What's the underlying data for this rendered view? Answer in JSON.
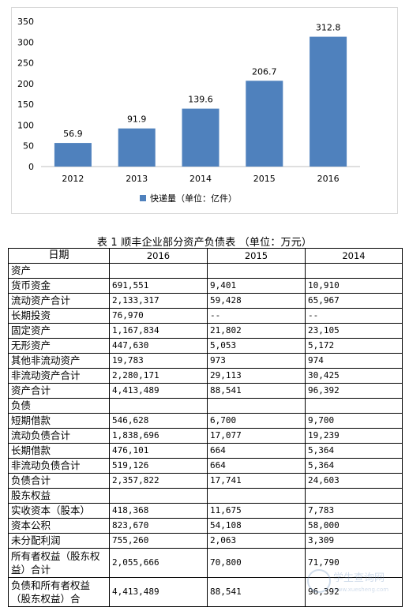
{
  "chart_data": {
    "type": "bar",
    "categories": [
      "2012",
      "2013",
      "2014",
      "2015",
      "2016"
    ],
    "values": [
      56.9,
      91.9,
      139.6,
      206.7,
      312.8
    ],
    "value_labels": [
      "56.9",
      "91.9",
      "139.6",
      "206.7",
      "312.8"
    ],
    "yticks": [
      "0",
      "50",
      "100",
      "150",
      "200",
      "250",
      "300",
      "350"
    ],
    "ylim": [
      0,
      350
    ],
    "legend": "快递量（单位：亿件）",
    "legend_position": "bottom",
    "bar_color": "#4F81BD",
    "grid": false
  },
  "table": {
    "caption": "表 1  顺丰企业部分资产负债表  （单位：万元）",
    "headers": [
      "日期",
      "2016",
      "2015",
      "2014"
    ],
    "rows": [
      {
        "label": "资产",
        "v2016": "",
        "v2015": "",
        "v2014": ""
      },
      {
        "label": "货币资金",
        "v2016": "691,551",
        "v2015": "9,401",
        "v2014": "10,910"
      },
      {
        "label": "流动资产合计",
        "v2016": "2,133,317",
        "v2015": "59,428",
        "v2014": "65,967"
      },
      {
        "label": "长期投资",
        "v2016": "76,970",
        "v2015": "--",
        "v2014": "--"
      },
      {
        "label": "固定资产",
        "v2016": "1,167,834",
        "v2015": "21,802",
        "v2014": "23,105"
      },
      {
        "label": "无形资产",
        "v2016": "447,630",
        "v2015": "5,053",
        "v2014": "5,172"
      },
      {
        "label": "其他非流动资产",
        "v2016": "19,783",
        "v2015": "973",
        "v2014": "974"
      },
      {
        "label": "非流动资产合计",
        "v2016": "2,280,171",
        "v2015": "29,113",
        "v2014": "30,425"
      },
      {
        "label": "资产合计",
        "v2016": "4,413,489",
        "v2015": "88,541",
        "v2014": "96,392"
      },
      {
        "label": "负债",
        "v2016": "",
        "v2015": "",
        "v2014": ""
      },
      {
        "label": "短期借款",
        "v2016": "546,628",
        "v2015": "6,700",
        "v2014": "9,700"
      },
      {
        "label": "流动负债合计",
        "v2016": "1,838,696",
        "v2015": "17,077",
        "v2014": "19,239"
      },
      {
        "label": "长期借款",
        "v2016": "476,101",
        "v2015": "664",
        "v2014": "5,364"
      },
      {
        "label": "非流动负债合计",
        "v2016": "519,126",
        "v2015": "664",
        "v2014": "5,364"
      },
      {
        "label": "负债合计",
        "v2016": "2,357,822",
        "v2015": "17,741",
        "v2014": "24,603"
      },
      {
        "label": "股东权益",
        "v2016": "",
        "v2015": "",
        "v2014": ""
      },
      {
        "label": "实收资本（股本）",
        "v2016": "418,368",
        "v2015": "11,675",
        "v2014": "7,783"
      },
      {
        "label": "资本公积",
        "v2016": "823,670",
        "v2015": "54,108",
        "v2014": "58,000"
      },
      {
        "label": "未分配利润",
        "v2016": "755,260",
        "v2015": "2,063",
        "v2014": "3,309"
      },
      {
        "label": "所有者权益（股东权益）合计",
        "v2016": "2,055,666",
        "v2015": "70,800",
        "v2014": "71,790",
        "tall": true
      },
      {
        "label": "负债和所有者权益（股东权益）合",
        "v2016": "4,413,489",
        "v2015": "88,541",
        "v2014": "96,392",
        "tall": true
      }
    ]
  },
  "watermark": {
    "text": "学生查询网",
    "subtext": "www.xuesheng.com"
  }
}
